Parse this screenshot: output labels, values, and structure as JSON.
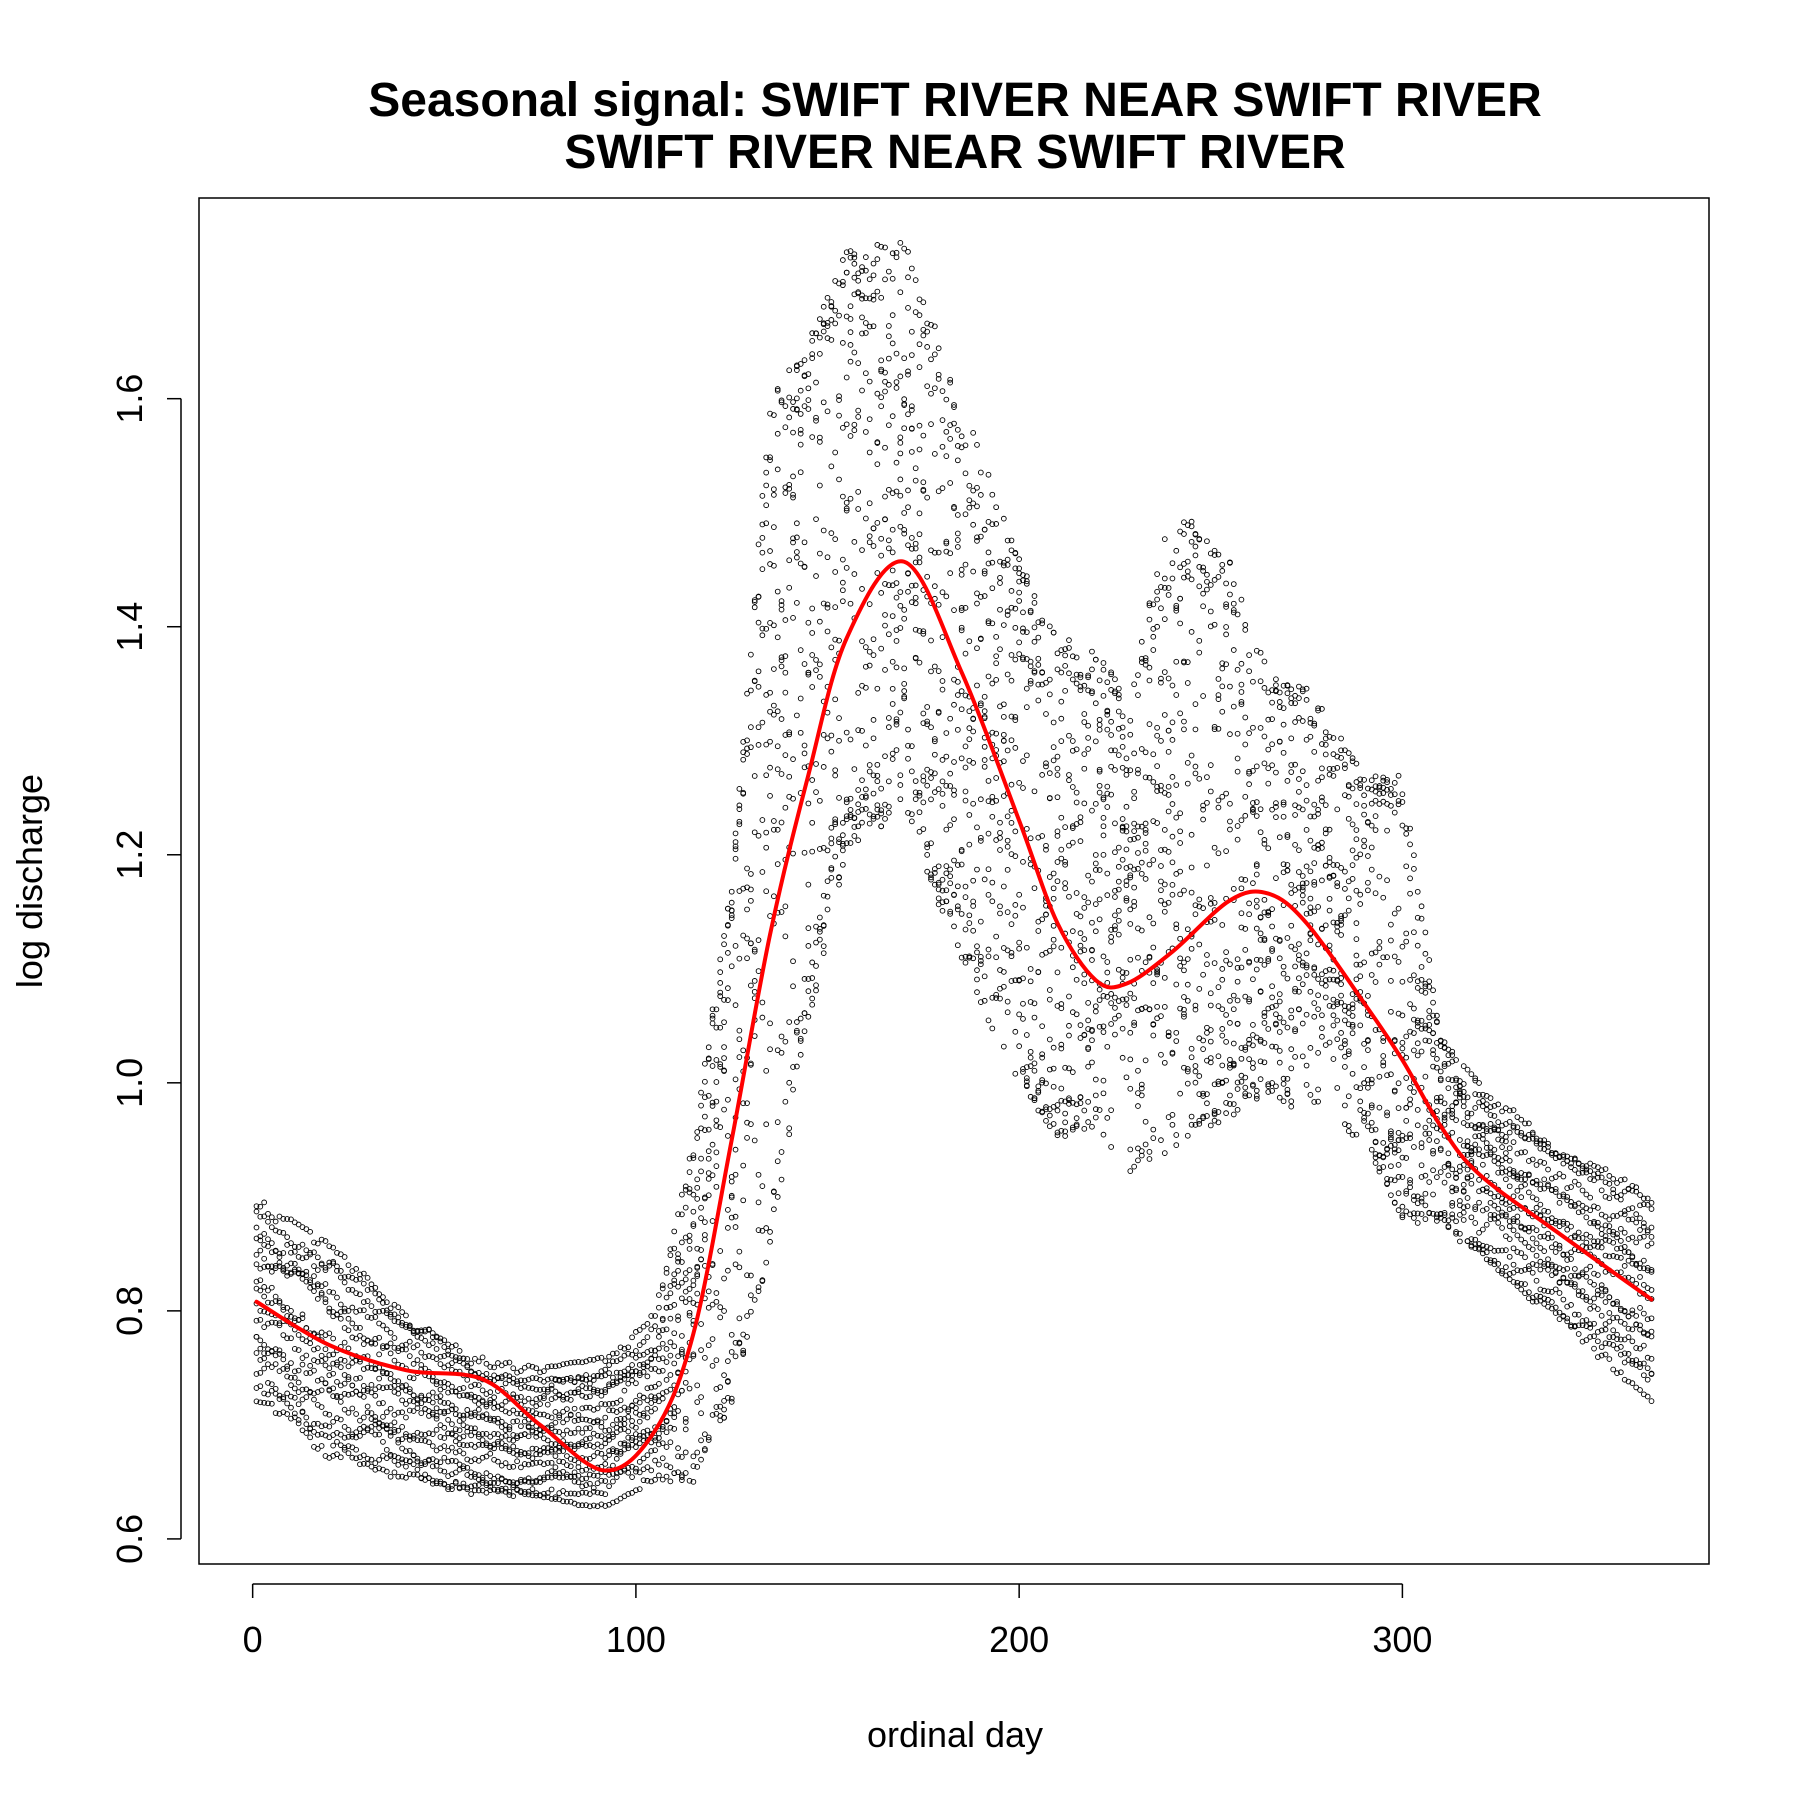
{
  "chart_data": {
    "type": "scatter",
    "title": "Seasonal signal: SWIFT RIVER NEAR SWIFT RIVER",
    "subtitle": "SWIFT RIVER NEAR SWIFT RIVER",
    "xlabel": "ordinal day",
    "ylabel": "log discharge",
    "xlim": [
      -14,
      380
    ],
    "ylim": [
      0.578,
      1.776
    ],
    "x_ticks": [
      0,
      100,
      200,
      300
    ],
    "y_ticks": [
      0.6,
      0.8,
      1.0,
      1.2,
      1.4,
      1.6
    ],
    "x_tick_labels": [
      "0",
      "100",
      "200",
      "300"
    ],
    "y_tick_labels": [
      "0.6",
      "0.8",
      "1.0",
      "1.2",
      "1.4",
      "1.6"
    ],
    "grid": false,
    "legend": "none",
    "point_color": "#000000",
    "fit_color": "#ff0000",
    "seasonal_fit": {
      "x": [
        1,
        20,
        40,
        60,
        75,
        92,
        105,
        115,
        125,
        135,
        145,
        155,
        170,
        185,
        200,
        210,
        220,
        228,
        240,
        255,
        265,
        275,
        290,
        300,
        310,
        320,
        340,
        365
      ],
      "y": [
        0.808,
        0.77,
        0.748,
        0.74,
        0.7,
        0.66,
        0.695,
        0.78,
        0.95,
        1.13,
        1.27,
        1.39,
        1.457,
        1.36,
        1.23,
        1.14,
        1.09,
        1.087,
        1.115,
        1.16,
        1.166,
        1.14,
        1.07,
        1.02,
        0.962,
        0.92,
        0.87,
        0.81
      ]
    },
    "scatter_envelope": {
      "x": [
        1,
        20,
        40,
        60,
        75,
        92,
        105,
        115,
        125,
        135,
        145,
        155,
        170,
        185,
        200,
        210,
        220,
        228,
        240,
        255,
        265,
        275,
        290,
        300,
        310,
        320,
        340,
        365
      ],
      "low": [
        0.72,
        0.67,
        0.645,
        0.635,
        0.63,
        0.628,
        0.65,
        0.65,
        0.72,
        0.85,
        1.05,
        1.2,
        1.24,
        1.1,
        1.0,
        0.95,
        0.96,
        0.92,
        0.94,
        0.97,
        0.99,
        0.97,
        0.95,
        0.88,
        0.87,
        0.85,
        0.79,
        0.72
      ],
      "high": [
        0.9,
        0.86,
        0.8,
        0.76,
        0.75,
        0.76,
        0.8,
        0.95,
        1.18,
        1.6,
        1.65,
        1.73,
        1.74,
        1.6,
        1.46,
        1.4,
        1.38,
        1.34,
        1.51,
        1.46,
        1.36,
        1.35,
        1.27,
        1.27,
        1.04,
        1.0,
        0.95,
        0.905
      ]
    },
    "years_of_record": 16
  }
}
